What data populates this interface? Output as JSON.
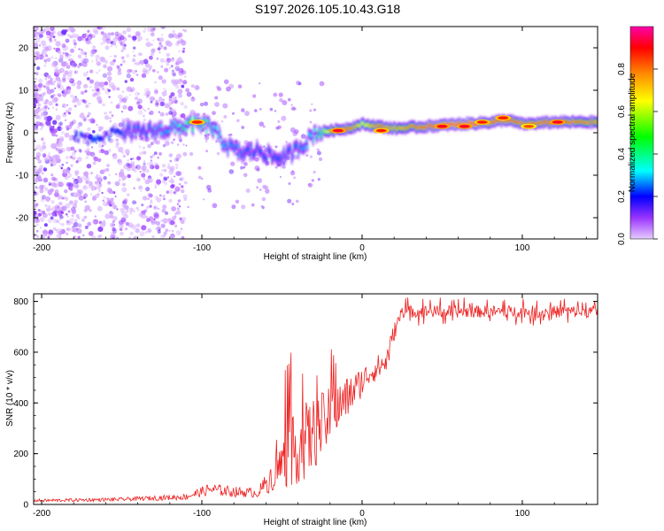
{
  "title": "S197.2026.105.10.43.G18",
  "chart_data": [
    {
      "type": "heatmap",
      "name": "spectrogram",
      "xlabel": "Height of straight line (km)",
      "ylabel": "Frequency (Hz)",
      "xlim": [
        -205,
        147
      ],
      "ylim": [
        -25,
        25
      ],
      "xticks": [
        -200,
        -100,
        0,
        100
      ],
      "yticks": [
        -20,
        -10,
        0,
        10,
        20
      ],
      "colorbar": {
        "label": "Normalized spectral amplitude",
        "range": [
          0,
          1
        ],
        "ticks": [
          0.0,
          0.2,
          0.4,
          0.6,
          0.8
        ],
        "tick_labels": [
          "0.0",
          "0.2",
          "0.4",
          "0.6",
          "0.8"
        ],
        "stops": [
          "#e6ccff",
          "#9933ff",
          "#0000ff",
          "#00ffff",
          "#00ff00",
          "#ffff00",
          "#ff8800",
          "#ff0000",
          "#ff00aa"
        ]
      },
      "ridge": {
        "x": [
          -205,
          -180,
          -170,
          -150,
          -140,
          -120,
          -105,
          -95,
          -85,
          -75,
          -65,
          -55,
          -45,
          -35,
          -30,
          -20,
          -10,
          0,
          10,
          20,
          40,
          60,
          80,
          90,
          100,
          120,
          147
        ],
        "y": [
          0,
          -1,
          -1.5,
          0.5,
          0,
          1,
          2,
          1.5,
          -3,
          -5,
          -4,
          -6,
          -5,
          -2,
          0,
          0.5,
          1,
          2,
          1.5,
          1,
          1.5,
          2,
          2.5,
          3,
          2,
          2.5,
          2.5
        ],
        "amplitude": [
          0.15,
          0.2,
          0.25,
          0.3,
          0.3,
          0.35,
          0.5,
          0.4,
          0.35,
          0.3,
          0.3,
          0.3,
          0.3,
          0.35,
          0.4,
          0.7,
          0.85,
          0.6,
          0.8,
          0.7,
          0.85,
          0.9,
          0.85,
          0.85,
          0.8,
          0.85,
          0.75
        ]
      },
      "bright_spots": [
        {
          "x": -103,
          "y": 2.5,
          "amp": 0.85
        },
        {
          "x": -15,
          "y": 0.5,
          "amp": 0.9
        },
        {
          "x": 12,
          "y": 0.5,
          "amp": 0.85
        },
        {
          "x": 50,
          "y": 1.5,
          "amp": 0.9
        },
        {
          "x": 64,
          "y": 1.5,
          "amp": 0.9
        },
        {
          "x": 75,
          "y": 2.5,
          "amp": 0.85
        },
        {
          "x": 88,
          "y": 3.5,
          "amp": 0.85
        },
        {
          "x": 104,
          "y": 1.5,
          "amp": 0.8
        },
        {
          "x": 122,
          "y": 2.5,
          "amp": 0.9
        }
      ],
      "noise_region_x": [
        -205,
        -110
      ]
    },
    {
      "type": "line",
      "name": "snr",
      "xlabel": "Height of straight line (km)",
      "ylabel": "SNR (10 * v/v)",
      "xlim": [
        -205,
        147
      ],
      "ylim": [
        0,
        830
      ],
      "xticks": [
        -200,
        -100,
        0,
        100
      ],
      "yticks": [
        0,
        200,
        400,
        600,
        800
      ],
      "color": "#ee2222",
      "envelope": {
        "x": [
          -205,
          -150,
          -110,
          -95,
          -80,
          -65,
          -55,
          -45,
          -35,
          -25,
          -15,
          -5,
          5,
          15,
          20,
          25,
          147
        ],
        "mean": [
          15,
          20,
          30,
          60,
          50,
          45,
          120,
          200,
          250,
          310,
          380,
          450,
          520,
          560,
          680,
          760,
          760
        ],
        "spread": [
          10,
          12,
          20,
          40,
          35,
          30,
          110,
          220,
          260,
          220,
          170,
          120,
          80,
          90,
          60,
          40,
          40
        ]
      }
    }
  ]
}
